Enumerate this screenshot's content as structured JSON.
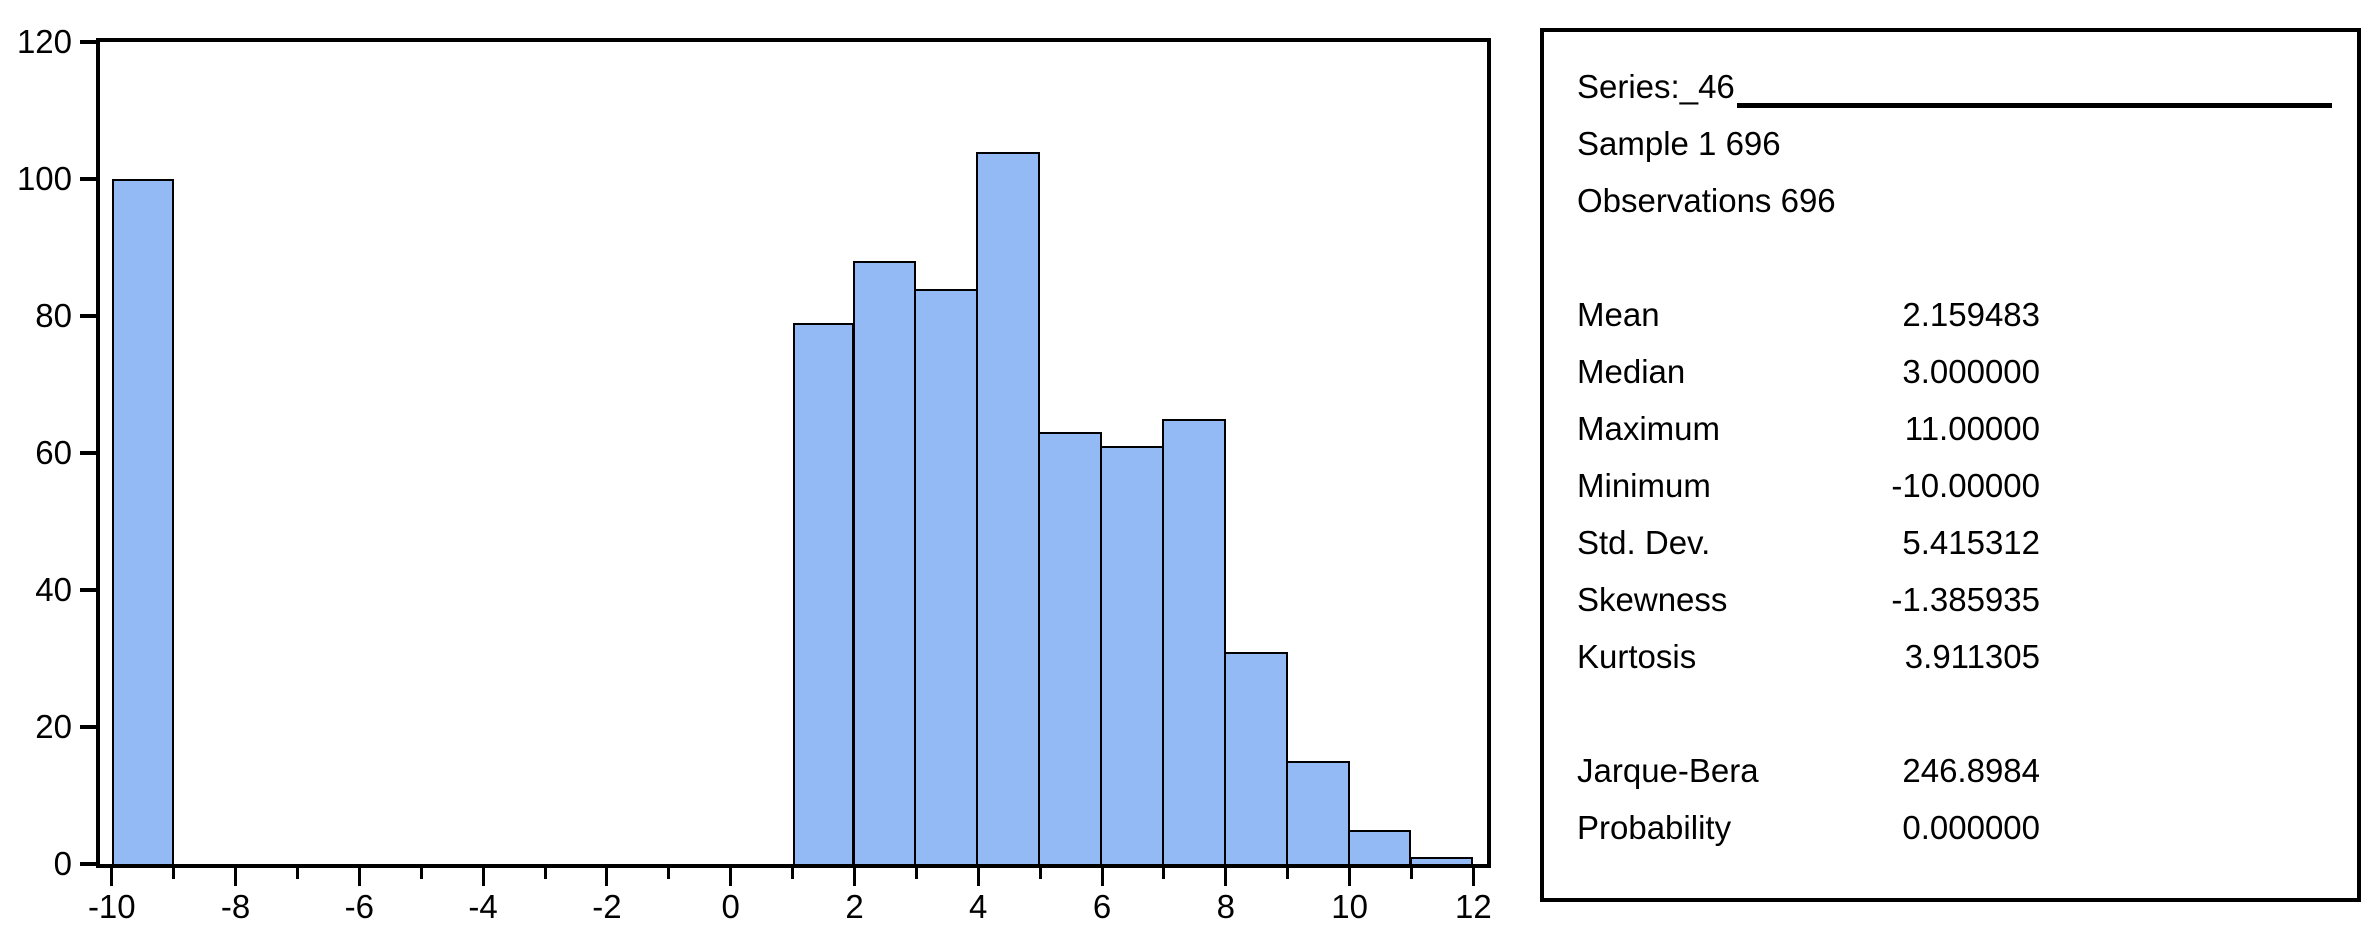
{
  "chart_data": {
    "type": "bar",
    "subtype": "histogram",
    "title": "",
    "xlabel": "",
    "ylabel": "",
    "grid": false,
    "legend": null,
    "bins": [
      {
        "x0": -10,
        "x1": -9,
        "count": 100
      },
      {
        "x0": 1,
        "x1": 2,
        "count": 79
      },
      {
        "x0": 2,
        "x1": 3,
        "count": 88
      },
      {
        "x0": 3,
        "x1": 4,
        "count": 84
      },
      {
        "x0": 4,
        "x1": 5,
        "count": 104
      },
      {
        "x0": 5,
        "x1": 6,
        "count": 63
      },
      {
        "x0": 6,
        "x1": 7,
        "count": 61
      },
      {
        "x0": 7,
        "x1": 8,
        "count": 65
      },
      {
        "x0": 8,
        "x1": 9,
        "count": 31
      },
      {
        "x0": 9,
        "x1": 10,
        "count": 15
      },
      {
        "x0": 10,
        "x1": 11,
        "count": 5
      },
      {
        "x0": 11,
        "x1": 12,
        "count": 1
      }
    ],
    "total_count": 696,
    "xlim": [
      -10.19,
      12.22
    ],
    "ylim": [
      0,
      120
    ],
    "x_major_ticks": [
      -10,
      -8,
      -6,
      -4,
      -2,
      0,
      2,
      4,
      6,
      8,
      10,
      12
    ],
    "x_major_labels": [
      "-10",
      "-8",
      "-6",
      "-4",
      "-2",
      "0",
      "2",
      "4",
      "6",
      "8",
      "10",
      "12"
    ],
    "x_minor_ticks": [
      -9,
      -7,
      -5,
      -3,
      -1,
      1,
      3,
      5,
      7,
      9,
      11
    ],
    "y_ticks": [
      0,
      20,
      40,
      60,
      80,
      100,
      120
    ],
    "y_tick_labels": [
      "0",
      "20",
      "40",
      "60",
      "80",
      "100",
      "120"
    ]
  },
  "colors": {
    "bar_fill": "#94BAF5",
    "bar_border": "#000000",
    "frame": "#000000",
    "text": "#000000",
    "background": "#FFFFFF"
  },
  "stats_panel": {
    "series_label": "Series:",
    "series_name": "_46",
    "sample_line": "Sample 1 696",
    "observations_line": "Observations 696",
    "rows": [
      {
        "label": "Mean",
        "value": "2.159483"
      },
      {
        "label": "Median",
        "value": "3.000000"
      },
      {
        "label": "Maximum",
        "value": "11.00000"
      },
      {
        "label": "Minimum",
        "value": "-10.00000"
      },
      {
        "label": "Std. Dev.",
        "value": "5.415312"
      },
      {
        "label": "Skewness",
        "value": "-1.385935"
      },
      {
        "label": "Kurtosis",
        "value": "3.911305"
      }
    ],
    "rows2": [
      {
        "label": "Jarque-Bera",
        "value": "246.8984"
      },
      {
        "label": "Probability",
        "value": "0.000000"
      }
    ]
  }
}
